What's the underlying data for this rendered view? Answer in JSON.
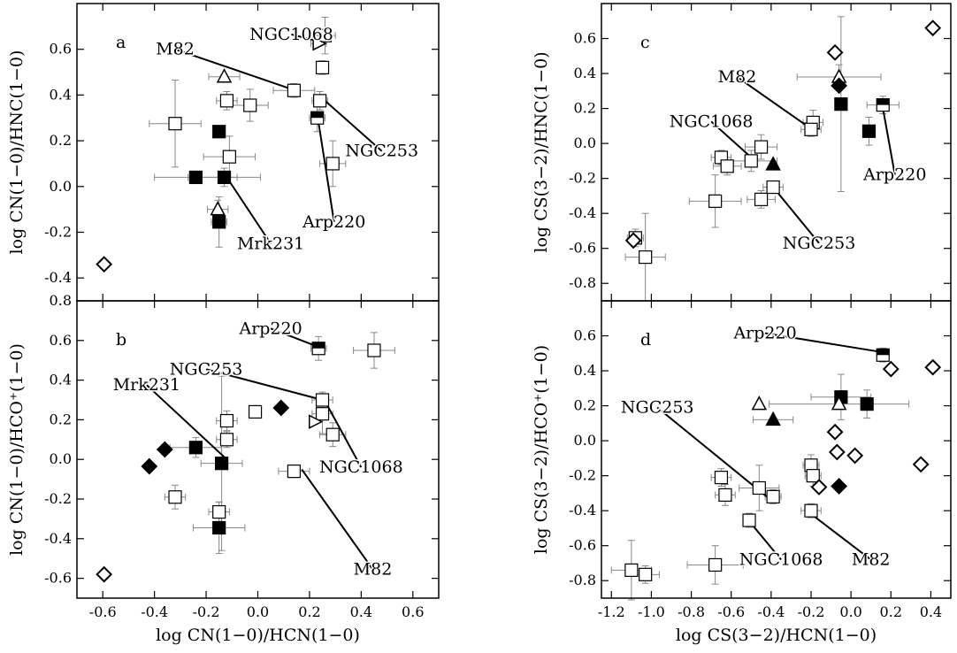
{
  "chart_data": [
    {
      "panel": "a",
      "type": "scatter",
      "xlabel": "",
      "ylabel": "log CN(1−0)/HNC(1−0)",
      "xlim": [
        -0.7,
        0.7
      ],
      "ylim": [
        -0.5,
        0.8
      ],
      "xticks": [],
      "xtick_labels": [],
      "yticks": [
        -0.4,
        -0.2,
        0.0,
        0.2,
        0.4,
        0.6
      ],
      "ytick_labels": [
        "-0.4",
        "-0.2",
        "0.0",
        "0.2",
        "0.4",
        "0.6"
      ],
      "points": [
        {
          "x": -0.32,
          "y": 0.275,
          "m": "so",
          "xe": 0.1,
          "ye": 0.19
        },
        {
          "x": -0.12,
          "y": 0.375,
          "m": "so",
          "xe": 0.04,
          "ye": 0.04
        },
        {
          "x": -0.03,
          "y": 0.355,
          "m": "so",
          "xe": 0.07,
          "ye": 0.07
        },
        {
          "x": -0.11,
          "y": 0.13,
          "m": "so",
          "xe": 0.1,
          "ye": 0.09
        },
        {
          "x": 0.14,
          "y": 0.42,
          "m": "so",
          "xe": 0.08,
          "ye": 0.03
        },
        {
          "x": 0.25,
          "y": 0.52,
          "m": "so",
          "xe": 0.02,
          "ye": 0.03
        },
        {
          "x": 0.26,
          "y": 0.66,
          "m": "so",
          "xe": 0.04,
          "ye": 0.08
        },
        {
          "x": 0.24,
          "y": 0.375,
          "m": "so",
          "xe": 0.03,
          "ye": 0.04
        },
        {
          "x": 0.29,
          "y": 0.1,
          "m": "so",
          "xe": 0.05,
          "ye": 0.1
        },
        {
          "x": -0.15,
          "y": 0.24,
          "m": "sf",
          "xe": 0,
          "ye": 0
        },
        {
          "x": -0.24,
          "y": 0.04,
          "m": "sf",
          "xe": 0.16,
          "ye": 0
        },
        {
          "x": -0.13,
          "y": 0.04,
          "m": "sf",
          "xe": 0.14,
          "ye": 0.04
        },
        {
          "x": -0.15,
          "y": -0.155,
          "m": "sf",
          "xe": 0.03,
          "ye": 0.11
        },
        {
          "x": 0.23,
          "y": 0.3,
          "m": "sh",
          "xe": 0.03,
          "ye": 0.06
        },
        {
          "x": -0.13,
          "y": 0.48,
          "m": "to",
          "xe": 0.06,
          "ye": 0
        },
        {
          "x": -0.155,
          "y": -0.1,
          "m": "to",
          "xe": 0.04,
          "ye": 0.04
        },
        {
          "x": 0.235,
          "y": 0.625,
          "m": "tr",
          "xe": 0.03,
          "ye": 0
        },
        {
          "x": -0.595,
          "y": -0.34,
          "m": "do",
          "xe": 0,
          "ye": 0
        }
      ],
      "annotations": [
        {
          "text": "M82",
          "tx": -0.32,
          "ty": 0.6,
          "px": 0.145,
          "py": 0.42
        },
        {
          "text": "NGC1068",
          "tx": 0.13,
          "ty": 0.665,
          "px": 0.25,
          "py": 0.63
        },
        {
          "text": "NGC253",
          "tx": 0.48,
          "ty": 0.155,
          "px": 0.265,
          "py": 0.37
        },
        {
          "text": "Arp220",
          "tx": 0.295,
          "ty": -0.155,
          "px": 0.235,
          "py": 0.28
        },
        {
          "text": "Mrk231",
          "tx": 0.05,
          "ty": -0.25,
          "px": -0.12,
          "py": 0.04
        }
      ]
    },
    {
      "panel": "b",
      "type": "scatter",
      "xlabel": "log CN(1−0)/HCN(1−0)",
      "ylabel": "log CN(1−0)/HCO⁺(1−0)",
      "xlim": [
        -0.7,
        0.7
      ],
      "ylim": [
        -0.7,
        0.8
      ],
      "xticks": [
        -0.6,
        -0.4,
        -0.2,
        0.0,
        0.2,
        0.4,
        0.6
      ],
      "xtick_labels": [
        "-0.6",
        "-0.4",
        "-0.2",
        "0.0",
        "0.2",
        "0.4",
        "0.6"
      ],
      "yticks": [
        -0.6,
        -0.4,
        -0.2,
        0.0,
        0.2,
        0.4,
        0.6,
        0.8
      ],
      "ytick_labels": [
        "-0.6",
        "-0.4",
        "-0.2",
        "0.0",
        "0.2",
        "0.4",
        "0.6",
        "0.8"
      ],
      "points": [
        {
          "x": -0.01,
          "y": 0.24,
          "m": "so",
          "xe": 0,
          "ye": 0
        },
        {
          "x": -0.12,
          "y": 0.195,
          "m": "so",
          "xe": 0.04,
          "ye": 0.05
        },
        {
          "x": -0.12,
          "y": 0.1,
          "m": "so",
          "xe": 0.04,
          "ye": 0.04
        },
        {
          "x": -0.15,
          "y": -0.265,
          "m": "so",
          "xe": 0.04,
          "ye": 0.05
        },
        {
          "x": -0.32,
          "y": -0.19,
          "m": "so",
          "xe": 0.04,
          "ye": 0.06
        },
        {
          "x": 0.14,
          "y": -0.06,
          "m": "so",
          "xe": 0.06,
          "ye": 0.03
        },
        {
          "x": 0.25,
          "y": 0.3,
          "m": "so",
          "xe": 0.04,
          "ye": 0.04
        },
        {
          "x": 0.25,
          "y": 0.23,
          "m": "so",
          "xe": 0.04,
          "ye": 0.1
        },
        {
          "x": 0.29,
          "y": 0.125,
          "m": "so",
          "xe": 0.05,
          "ye": 0.06
        },
        {
          "x": 0.45,
          "y": 0.55,
          "m": "so",
          "xe": 0.08,
          "ye": 0.09
        },
        {
          "x": -0.24,
          "y": 0.06,
          "m": "sf",
          "xe": 0.1,
          "ye": 0.05
        },
        {
          "x": -0.14,
          "y": -0.02,
          "m": "sf",
          "xe": 0.08,
          "ye": 0.44
        },
        {
          "x": -0.15,
          "y": -0.345,
          "m": "sf",
          "xe": 0.1,
          "ye": 0.13
        },
        {
          "x": 0.235,
          "y": 0.56,
          "m": "sh",
          "xe": 0.03,
          "ye": 0.06
        },
        {
          "x": -0.42,
          "y": -0.035,
          "m": "df",
          "xe": 0,
          "ye": 0
        },
        {
          "x": -0.36,
          "y": 0.05,
          "m": "df",
          "xe": 0,
          "ye": 0
        },
        {
          "x": 0.09,
          "y": 0.26,
          "m": "df",
          "xe": 0,
          "ye": 0
        },
        {
          "x": 0.22,
          "y": 0.19,
          "m": "tr",
          "xe": 0,
          "ye": 0
        },
        {
          "x": -0.595,
          "y": -0.58,
          "m": "do",
          "xe": 0,
          "ye": 0
        }
      ],
      "annotations": [
        {
          "text": "Arp220",
          "tx": 0.05,
          "ty": 0.66,
          "px": 0.24,
          "py": 0.565
        },
        {
          "text": "NGC253",
          "tx": -0.2,
          "ty": 0.455,
          "px": 0.25,
          "py": 0.3
        },
        {
          "text": "Mrk231",
          "tx": -0.43,
          "ty": 0.375,
          "px": -0.12,
          "py": 0.0
        },
        {
          "text": "NGC1068",
          "tx": 0.4,
          "ty": -0.04,
          "px": 0.27,
          "py": 0.27
        },
        {
          "text": "M82",
          "tx": 0.445,
          "ty": -0.555,
          "px": 0.17,
          "py": -0.05
        }
      ]
    },
    {
      "panel": "c",
      "type": "scatter",
      "xlabel": "",
      "ylabel": "log CS(3−2)/HNC(1−0)",
      "xlim": [
        -1.25,
        0.5
      ],
      "ylim": [
        -0.9,
        0.8
      ],
      "xticks": [],
      "xtick_labels": [],
      "yticks": [
        -0.8,
        -0.6,
        -0.4,
        -0.2,
        0.0,
        0.2,
        0.4,
        0.6
      ],
      "ytick_labels": [
        "-0.8",
        "-0.6",
        "-0.4",
        "-0.2",
        "0.0",
        "0.2",
        "0.4",
        "0.6"
      ],
      "points": [
        {
          "x": -1.08,
          "y": -0.54,
          "m": "so",
          "xe": 0.04,
          "ye": 0.05
        },
        {
          "x": -1.03,
          "y": -0.65,
          "m": "so",
          "xe": 0.1,
          "ye": 0.25
        },
        {
          "x": -0.68,
          "y": -0.33,
          "m": "so",
          "xe": 0.13,
          "ye": 0.15
        },
        {
          "x": -0.65,
          "y": -0.08,
          "m": "so",
          "xe": 0.05,
          "ye": 0.04
        },
        {
          "x": -0.62,
          "y": -0.13,
          "m": "so",
          "xe": 0.07,
          "ye": 0.05
        },
        {
          "x": -0.5,
          "y": -0.1,
          "m": "so",
          "xe": 0.13,
          "ye": 0.06
        },
        {
          "x": -0.45,
          "y": -0.02,
          "m": "so",
          "xe": 0.08,
          "ye": 0.07
        },
        {
          "x": -0.45,
          "y": -0.32,
          "m": "so",
          "xe": 0.07,
          "ye": 0.05
        },
        {
          "x": -0.39,
          "y": -0.25,
          "m": "so",
          "xe": 0.05,
          "ye": 0.03
        },
        {
          "x": -0.19,
          "y": 0.12,
          "m": "so",
          "xe": 0.05,
          "ye": 0.07
        },
        {
          "x": -0.2,
          "y": 0.08,
          "m": "so",
          "xe": 0.05,
          "ye": 0.04
        },
        {
          "x": -0.05,
          "y": 0.225,
          "m": "sf",
          "xe": 0,
          "ye": 0.5
        },
        {
          "x": 0.09,
          "y": 0.07,
          "m": "sf",
          "xe": 0,
          "ye": 0.08
        },
        {
          "x": 0.16,
          "y": 0.22,
          "m": "sh",
          "xe": 0.08,
          "ye": 0.05
        },
        {
          "x": -0.39,
          "y": -0.12,
          "m": "tf",
          "xe": 0,
          "ye": 0
        },
        {
          "x": -0.06,
          "y": 0.38,
          "m": "to",
          "xe": 0.21,
          "ye": 0.07
        },
        {
          "x": -0.06,
          "y": 0.33,
          "m": "df",
          "xe": 0,
          "ye": 0
        },
        {
          "x": -0.08,
          "y": 0.52,
          "m": "do",
          "xe": 0,
          "ye": 0
        },
        {
          "x": 0.41,
          "y": 0.66,
          "m": "do",
          "xe": 0,
          "ye": 0
        },
        {
          "x": -1.09,
          "y": -0.555,
          "m": "do",
          "xe": 0,
          "ye": 0
        }
      ],
      "annotations": [
        {
          "text": "M82",
          "tx": -0.57,
          "ty": 0.38,
          "px": -0.22,
          "py": 0.1
        },
        {
          "text": "NGC1068",
          "tx": -0.7,
          "ty": 0.125,
          "px": -0.49,
          "py": -0.09
        },
        {
          "text": "NGC253",
          "tx": -0.16,
          "ty": -0.57,
          "px": -0.39,
          "py": -0.25
        },
        {
          "text": "Arp220",
          "tx": 0.22,
          "ty": -0.18,
          "px": 0.16,
          "py": 0.2
        }
      ]
    },
    {
      "panel": "d",
      "type": "scatter",
      "xlabel": "log CS(3−2)/HCN(1−0)",
      "ylabel": "log CS(3−2)/HCO⁺(1−0)",
      "xlim": [
        -1.25,
        0.5
      ],
      "ylim": [
        -0.9,
        0.8
      ],
      "xticks": [
        -1.2,
        -1.0,
        -0.8,
        -0.6,
        -0.4,
        -0.2,
        0.0,
        0.2,
        0.4
      ],
      "xtick_labels": [
        "-1.2",
        "-1.0",
        "-0.8",
        "-0.6",
        "-0.4",
        "-0.2",
        "0.0",
        "0.2",
        "0.4"
      ],
      "yticks": [
        -0.8,
        -0.6,
        -0.4,
        -0.2,
        0.0,
        0.2,
        0.4,
        0.6
      ],
      "ytick_labels": [
        "-0.8",
        "-0.6",
        "-0.4",
        "-0.2",
        "0.0",
        "0.2",
        "0.4",
        "0.6"
      ],
      "points": [
        {
          "x": -1.1,
          "y": -0.74,
          "m": "so",
          "xe": 0.1,
          "ye": 0.17
        },
        {
          "x": -1.03,
          "y": -0.765,
          "m": "so",
          "xe": 0.07,
          "ye": 0.05
        },
        {
          "x": -0.68,
          "y": -0.71,
          "m": "so",
          "xe": 0.14,
          "ye": 0.11
        },
        {
          "x": -0.65,
          "y": -0.21,
          "m": "so",
          "xe": 0.05,
          "ye": 0.05
        },
        {
          "x": -0.63,
          "y": -0.31,
          "m": "so",
          "xe": 0.05,
          "ye": 0.06
        },
        {
          "x": -0.46,
          "y": -0.27,
          "m": "so",
          "xe": 0.1,
          "ye": 0.13
        },
        {
          "x": -0.39,
          "y": -0.32,
          "m": "so",
          "xe": 0.04,
          "ye": 0.04
        },
        {
          "x": -0.51,
          "y": -0.455,
          "m": "so",
          "xe": 0.03,
          "ye": 0.04
        },
        {
          "x": -0.2,
          "y": -0.14,
          "m": "so",
          "xe": 0.04,
          "ye": 0.06
        },
        {
          "x": -0.19,
          "y": -0.2,
          "m": "so",
          "xe": 0.04,
          "ye": 0.06
        },
        {
          "x": -0.2,
          "y": -0.4,
          "m": "so",
          "xe": 0.05,
          "ye": 0.04
        },
        {
          "x": -0.05,
          "y": 0.25,
          "m": "sf",
          "xe": 0.15,
          "ye": 0.13
        },
        {
          "x": 0.08,
          "y": 0.21,
          "m": "sf",
          "xe": 0,
          "ye": 0.08
        },
        {
          "x": 0.16,
          "y": 0.49,
          "m": "sh",
          "xe": 0,
          "ye": 0.04
        },
        {
          "x": -0.46,
          "y": 0.21,
          "m": "to",
          "xe": 0,
          "ye": 0
        },
        {
          "x": -0.06,
          "y": 0.21,
          "m": "to",
          "xe": 0.35,
          "ye": 0
        },
        {
          "x": -0.39,
          "y": 0.12,
          "m": "tf",
          "xe": 0.1,
          "ye": 0
        },
        {
          "x": -0.06,
          "y": -0.26,
          "m": "df",
          "xe": 0,
          "ye": 0
        },
        {
          "x": -0.08,
          "y": 0.05,
          "m": "do",
          "xe": 0,
          "ye": 0
        },
        {
          "x": -0.07,
          "y": -0.065,
          "m": "do",
          "xe": 0,
          "ye": 0
        },
        {
          "x": 0.02,
          "y": -0.085,
          "m": "do",
          "xe": 0,
          "ye": 0
        },
        {
          "x": -0.16,
          "y": -0.265,
          "m": "do",
          "xe": 0,
          "ye": 0
        },
        {
          "x": 0.2,
          "y": 0.41,
          "m": "do",
          "xe": 0,
          "ye": 0
        },
        {
          "x": 0.41,
          "y": 0.42,
          "m": "do",
          "xe": 0,
          "ye": 0
        },
        {
          "x": 0.35,
          "y": -0.135,
          "m": "do",
          "xe": 0,
          "ye": 0
        }
      ],
      "annotations": [
        {
          "text": "Arp220",
          "tx": -0.43,
          "ty": 0.615,
          "px": 0.165,
          "py": 0.505
        },
        {
          "text": "NGC253",
          "tx": -0.97,
          "ty": 0.19,
          "px": -0.4,
          "py": -0.34
        },
        {
          "text": "NGC1068",
          "tx": -0.35,
          "ty": -0.68,
          "px": -0.51,
          "py": -0.46
        },
        {
          "text": "M82",
          "tx": 0.1,
          "ty": -0.68,
          "px": -0.21,
          "py": -0.41
        }
      ]
    }
  ]
}
